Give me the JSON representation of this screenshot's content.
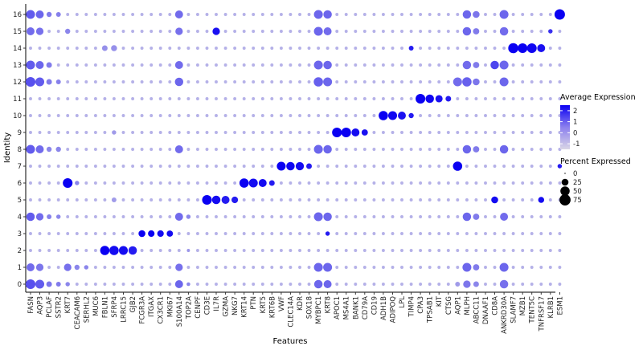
{
  "chart_data": {
    "type": "dotplot",
    "xlabel": "Features",
    "ylabel": "Identity",
    "features": [
      "FASN",
      "AQP3",
      "PCLAF",
      "SSTR2",
      "KRT7",
      "CEACAM6",
      "SERHL2",
      "MUC6",
      "FBLN1",
      "SFRP4",
      "LRRC15",
      "GJB2",
      "FCGR3A",
      "ITGAX",
      "CX3CR1",
      "MKI67",
      "S100A14",
      "TOP2A",
      "CENPF",
      "CD3E",
      "IL7R",
      "GZMA",
      "NKG7",
      "KRT14",
      "PTN",
      "KRT5",
      "KRT6B",
      "VWF",
      "CLEC14A",
      "KDR",
      "SOX18",
      "MYBPC1",
      "KRT8",
      "APOC1",
      "MS4A1",
      "BANK1",
      "CD79A",
      "CD19",
      "ADH1B",
      "ADIPOQ",
      "LPL",
      "TIMP4",
      "CPA3",
      "TPSAB1",
      "KIT",
      "CTSG",
      "AQP1",
      "MLPH",
      "ABCC11",
      "DNAAF1",
      "CD8A",
      "ANKRD30A",
      "SLAMF7",
      "MZB1",
      "TENT5C",
      "TNFRSF17",
      "KLRB1",
      "ESM1"
    ],
    "identities": [
      "0",
      "1",
      "2",
      "3",
      "4",
      "5",
      "6",
      "7",
      "8",
      "9",
      "10",
      "11",
      "12",
      "13",
      "14",
      "15",
      "16"
    ],
    "legend": {
      "color_title": "Average Expression",
      "color_ticks": [
        "2",
        "1",
        "0",
        "-1"
      ],
      "color_scale": {
        "low": "#d9d6e6",
        "high": "#0a00f2",
        "min": -1.5,
        "max": 2.5
      },
      "size_title": "Percent Expressed",
      "size_ticks": [
        "0",
        "25",
        "50",
        "75"
      ],
      "size_values": [
        0,
        25,
        50,
        75
      ]
    },
    "background": {
      "pct": 3,
      "expr": -0.8
    },
    "series": [
      {
        "identity": "0",
        "points": [
          [
            0,
            55,
            1.0
          ],
          [
            1,
            45,
            0.8
          ],
          [
            2,
            15,
            0.3
          ],
          [
            3,
            10,
            0.2
          ],
          [
            4,
            8,
            0.0
          ],
          [
            16,
            35,
            0.6
          ],
          [
            17,
            5,
            0.0
          ],
          [
            31,
            40,
            0.6
          ],
          [
            32,
            35,
            0.6
          ],
          [
            46,
            10,
            -0.4
          ],
          [
            47,
            30,
            0.3
          ],
          [
            48,
            15,
            0.0
          ],
          [
            51,
            40,
            0.4
          ]
        ]
      },
      {
        "identity": "1",
        "points": [
          [
            0,
            35,
            0.5
          ],
          [
            1,
            30,
            0.3
          ],
          [
            4,
            30,
            0.4
          ],
          [
            5,
            12,
            0.0
          ],
          [
            6,
            8,
            0.0
          ],
          [
            16,
            30,
            0.4
          ],
          [
            31,
            45,
            0.6
          ],
          [
            32,
            45,
            0.6
          ],
          [
            47,
            45,
            0.6
          ],
          [
            48,
            20,
            0.2
          ],
          [
            51,
            45,
            0.6
          ]
        ]
      },
      {
        "identity": "2",
        "points": [
          [
            8,
            50,
            2.5
          ],
          [
            9,
            50,
            2.3
          ],
          [
            10,
            45,
            2.3
          ],
          [
            11,
            40,
            2.0
          ],
          [
            17,
            3,
            -0.3
          ]
        ]
      },
      {
        "identity": "3",
        "points": [
          [
            12,
            25,
            2.5
          ],
          [
            13,
            22,
            2.5
          ],
          [
            14,
            22,
            2.3
          ],
          [
            15,
            20,
            2.3
          ],
          [
            32,
            8,
            2.0
          ]
        ]
      },
      {
        "identity": "4",
        "points": [
          [
            0,
            40,
            0.8
          ],
          [
            1,
            30,
            0.5
          ],
          [
            2,
            10,
            0.1
          ],
          [
            3,
            8,
            0.0
          ],
          [
            16,
            35,
            0.5
          ],
          [
            17,
            8,
            0.0
          ],
          [
            31,
            45,
            0.6
          ],
          [
            32,
            40,
            0.6
          ],
          [
            47,
            40,
            0.6
          ],
          [
            48,
            20,
            0.2
          ],
          [
            51,
            35,
            0.5
          ]
        ]
      },
      {
        "identity": "5",
        "points": [
          [
            19,
            55,
            2.5
          ],
          [
            20,
            40,
            2.3
          ],
          [
            21,
            35,
            2.0
          ],
          [
            22,
            22,
            2.0
          ],
          [
            50,
            25,
            2.3
          ],
          [
            55,
            18,
            2.3
          ],
          [
            9,
            10,
            -0.4
          ]
        ]
      },
      {
        "identity": "6",
        "points": [
          [
            4,
            55,
            2.5
          ],
          [
            23,
            50,
            2.5
          ],
          [
            24,
            45,
            2.3
          ],
          [
            25,
            35,
            2.3
          ],
          [
            26,
            15,
            2.0
          ],
          [
            5,
            8,
            0.0
          ]
        ]
      },
      {
        "identity": "7",
        "points": [
          [
            27,
            45,
            2.5
          ],
          [
            28,
            40,
            2.4
          ],
          [
            29,
            38,
            2.3
          ],
          [
            30,
            15,
            2.0
          ],
          [
            46,
            50,
            2.5
          ],
          [
            57,
            8,
            2.0
          ]
        ]
      },
      {
        "identity": "8",
        "points": [
          [
            0,
            45,
            0.8
          ],
          [
            1,
            35,
            0.5
          ],
          [
            2,
            12,
            0.0
          ],
          [
            3,
            12,
            0.0
          ],
          [
            16,
            35,
            0.5
          ],
          [
            31,
            45,
            0.6
          ],
          [
            32,
            40,
            0.6
          ],
          [
            47,
            40,
            0.6
          ],
          [
            48,
            20,
            0.2
          ],
          [
            51,
            40,
            0.6
          ]
        ]
      },
      {
        "identity": "9",
        "points": [
          [
            33,
            55,
            2.5
          ],
          [
            34,
            55,
            2.5
          ],
          [
            35,
            35,
            2.3
          ],
          [
            36,
            20,
            2.2
          ],
          [
            9,
            8,
            -0.4
          ]
        ]
      },
      {
        "identity": "10",
        "points": [
          [
            38,
            50,
            2.5
          ],
          [
            39,
            45,
            2.4
          ],
          [
            40,
            35,
            2.2
          ],
          [
            41,
            12,
            2.0
          ]
        ]
      },
      {
        "identity": "11",
        "points": [
          [
            42,
            55,
            2.5
          ],
          [
            43,
            40,
            2.4
          ],
          [
            44,
            28,
            2.2
          ],
          [
            45,
            15,
            2.0
          ]
        ]
      },
      {
        "identity": "12",
        "points": [
          [
            0,
            55,
            1.0
          ],
          [
            1,
            45,
            0.8
          ],
          [
            2,
            15,
            0.2
          ],
          [
            3,
            10,
            0.1
          ],
          [
            16,
            40,
            0.6
          ],
          [
            31,
            50,
            0.7
          ],
          [
            32,
            45,
            0.6
          ],
          [
            46,
            45,
            0.5
          ],
          [
            47,
            50,
            0.7
          ],
          [
            48,
            25,
            0.3
          ],
          [
            51,
            45,
            0.6
          ]
        ]
      },
      {
        "identity": "13",
        "points": [
          [
            0,
            45,
            0.8
          ],
          [
            1,
            35,
            0.6
          ],
          [
            2,
            15,
            0.2
          ],
          [
            16,
            35,
            0.5
          ],
          [
            31,
            45,
            0.6
          ],
          [
            32,
            40,
            0.6
          ],
          [
            47,
            40,
            0.5
          ],
          [
            48,
            20,
            0.2
          ],
          [
            50,
            40,
            1.2
          ],
          [
            51,
            45,
            0.6
          ]
        ]
      },
      {
        "identity": "14",
        "points": [
          [
            8,
            15,
            -0.2
          ],
          [
            9,
            18,
            -0.2
          ],
          [
            52,
            60,
            2.5
          ],
          [
            53,
            55,
            2.5
          ],
          [
            54,
            55,
            2.4
          ],
          [
            55,
            35,
            2.2
          ],
          [
            41,
            10,
            2.0
          ]
        ]
      },
      {
        "identity": "15",
        "points": [
          [
            0,
            35,
            0.5
          ],
          [
            1,
            30,
            0.4
          ],
          [
            4,
            12,
            0.0
          ],
          [
            16,
            30,
            0.4
          ],
          [
            20,
            30,
            2.2
          ],
          [
            31,
            45,
            0.6
          ],
          [
            32,
            35,
            0.5
          ],
          [
            47,
            40,
            0.6
          ],
          [
            48,
            20,
            0.2
          ],
          [
            51,
            40,
            0.5
          ],
          [
            56,
            8,
            1.6
          ]
        ]
      },
      {
        "identity": "16",
        "points": [
          [
            0,
            45,
            0.8
          ],
          [
            1,
            35,
            0.6
          ],
          [
            2,
            12,
            0.2
          ],
          [
            3,
            10,
            0.1
          ],
          [
            16,
            35,
            0.5
          ],
          [
            31,
            45,
            0.6
          ],
          [
            32,
            40,
            0.6
          ],
          [
            47,
            40,
            0.6
          ],
          [
            48,
            25,
            0.3
          ],
          [
            51,
            45,
            0.6
          ],
          [
            57,
            65,
            2.5
          ]
        ]
      }
    ]
  }
}
